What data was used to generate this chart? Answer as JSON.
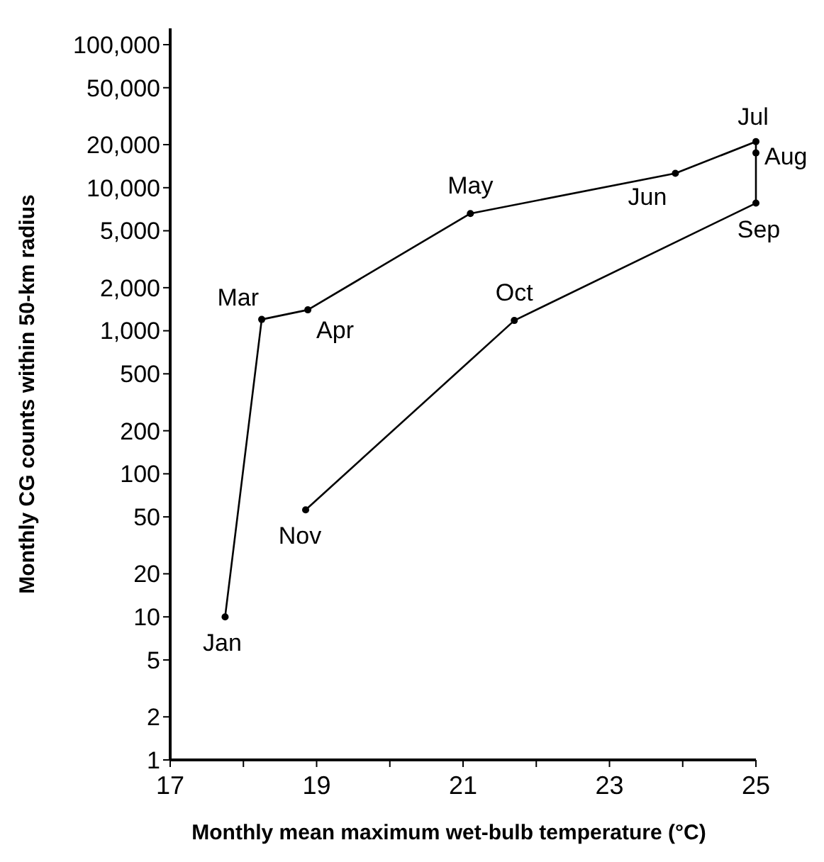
{
  "chart_data": {
    "type": "line",
    "xlabel": "Monthly mean maximum wet-bulb temperature (°C)",
    "ylabel": "Monthly CG counts within 50-km radius",
    "x": [
      17.75,
      18.25,
      18.88,
      21.1,
      23.9,
      25,
      25,
      25,
      21.7,
      18.85
    ],
    "series": [
      {
        "color": "#000000",
        "values": [
          10,
          1200,
          1400,
          6600,
          12600,
          21000,
          17500,
          7800,
          1180,
          56
        ]
      }
    ],
    "log": "y",
    "marker": "circle",
    "line_style": "solid",
    "grid": false,
    "xlim": [
      17,
      25
    ],
    "xticks": [
      17,
      {
        "value": 18,
        "label": null
      },
      19,
      {
        "value": 20,
        "label": null
      },
      21,
      {
        "value": 22,
        "label": null
      },
      23,
      {
        "value": 24,
        "label": null
      },
      25
    ],
    "ylim": [
      1,
      130000
    ],
    "yticks": [
      1,
      2,
      5,
      10,
      20,
      50,
      100,
      200,
      500,
      {
        "value": 1000,
        "label": "1,000"
      },
      {
        "value": 2000,
        "label": "2,000"
      },
      {
        "value": 5000,
        "label": "5,000"
      },
      {
        "value": 10000,
        "label": "10,000"
      },
      {
        "value": 20000,
        "label": "20,000"
      },
      {
        "value": 50000,
        "label": "50,000"
      },
      {
        "value": 100000,
        "label": "100,000"
      }
    ],
    "annotations": [
      {
        "text": "Jan",
        "x": 17.75,
        "y": 10
      },
      {
        "text": "Mar",
        "x": 18.25,
        "y": 1200
      },
      {
        "text": "Apr",
        "x": 18.88,
        "y": 1400
      },
      {
        "text": "May",
        "x": 21.1,
        "y": 6600
      },
      {
        "text": "Jun",
        "x": 23.9,
        "y": 12600
      },
      {
        "text": "Jul",
        "x": 25,
        "y": 21000
      },
      {
        "text": "Aug",
        "x": 25,
        "y": 17500
      },
      {
        "text": "Sep",
        "x": 25,
        "y": 7800
      },
      {
        "text": "Oct",
        "x": 21.7,
        "y": 1180
      },
      {
        "text": "Nov",
        "x": 18.85,
        "y": 56
      }
    ]
  }
}
